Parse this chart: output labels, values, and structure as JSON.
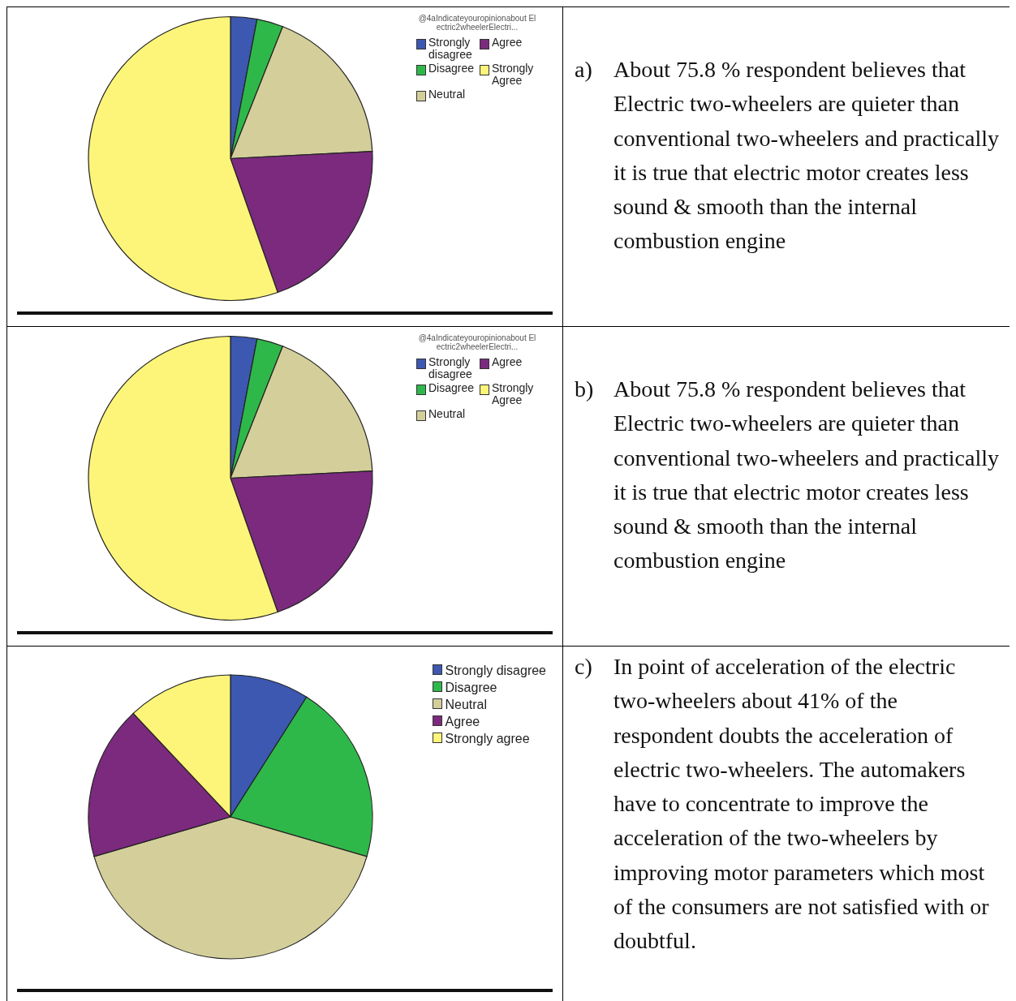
{
  "chart_data": [
    {
      "type": "pie",
      "legend_title": "@4aIndicateyouropinionabout Electric2wheelerElectri...",
      "legend": "top right",
      "categories": [
        "Strongly disagree",
        "Disagree",
        "Neutral",
        "Agree",
        "Strongly Agree"
      ],
      "values": [
        3,
        3,
        18.2,
        20.4,
        55.4
      ],
      "colors": [
        "#3c58b0",
        "#2fb84a",
        "#d4cf9a",
        "#7b2a7e",
        "#fdf57a"
      ]
    },
    {
      "type": "other",
      "annotations": [
        "a) About 75.8 % respondent believes that Electric two-wheelers are quieter than conventional two-wheelers and practically it is true that electric motor creates less sound & smooth than the internal combustion engine"
      ]
    },
    {
      "type": "pie",
      "legend_title": "@4aIndicateyouropinionabout Electric2wheelerElectri...",
      "legend": "top right",
      "categories": [
        "Strongly disagree",
        "Disagree",
        "Neutral",
        "Agree",
        "Strongly Agree"
      ],
      "values": [
        3,
        3,
        18.2,
        20.4,
        55.4
      ],
      "colors": [
        "#3c58b0",
        "#2fb84a",
        "#d4cf9a",
        "#7b2a7e",
        "#fdf57a"
      ]
    },
    {
      "type": "other",
      "annotations": [
        "b) About 75.8 % respondent believes that Electric two-wheelers are quieter than conventional two-wheelers and practically it is true that electric motor creates less sound & smooth than the internal combustion engine"
      ]
    },
    {
      "type": "pie",
      "legend": "top right",
      "categories": [
        "Strongly disagree",
        "Disagree",
        "Neutral",
        "Agree",
        "Strongly agree"
      ],
      "values": [
        9,
        20.5,
        41,
        17.5,
        12
      ],
      "colors": [
        "#3c58b0",
        "#2fb84a",
        "#d4cf9a",
        "#7b2a7e",
        "#fdf57a"
      ]
    },
    {
      "type": "other",
      "annotations": [
        "c) In point of acceleration of the electric two-wheelers about 41% of the respondent doubts the acceleration of electric two-wheelers. The automakers have to concentrate to improve the acceleration of the two-wheelers by improving motor parameters which most of the consumers are not satisfied with or doubtful."
      ]
    }
  ]
}
